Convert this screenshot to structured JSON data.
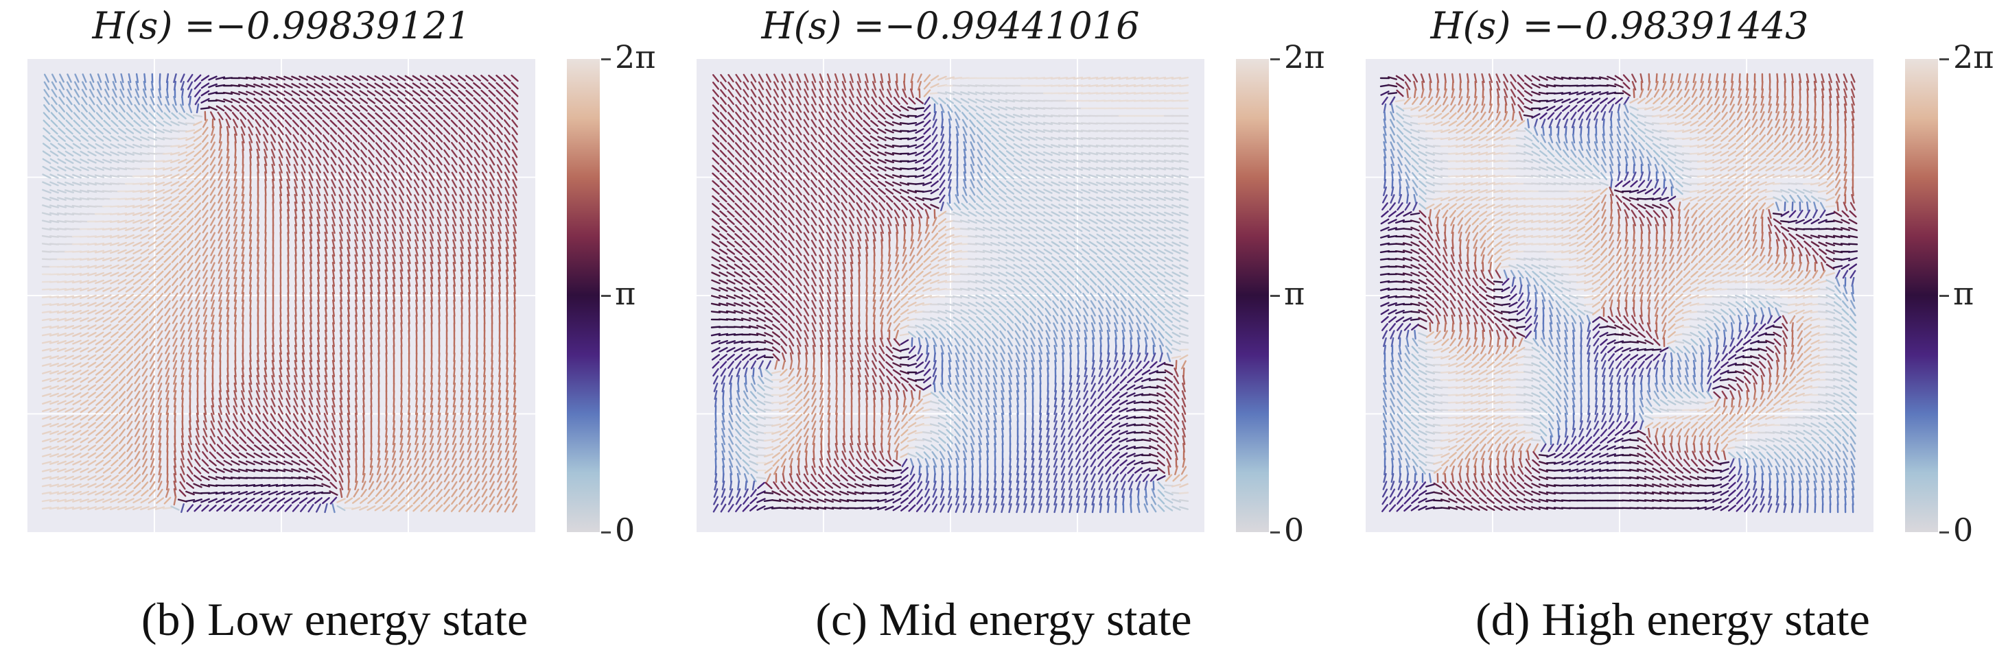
{
  "chart_data": [
    {
      "type": "heatmap",
      "title": "H(s) =−0.99839121",
      "caption": "(b) Low energy state",
      "colorbar": {
        "ticks": [
          "0",
          "π",
          "2π"
        ],
        "range": [
          0,
          6.283
        ]
      },
      "colormap": [
        "#dad8dc",
        "#a7c4d7",
        "#5d78bd",
        "#4a2580",
        "#2f0f3d",
        "#7e2d4a",
        "#b86c5c",
        "#e0b89d",
        "#e9e1dd"
      ],
      "grid": true,
      "hamiltonian": -0.99839121
    },
    {
      "type": "heatmap",
      "title": "H(s) =−0.99441016",
      "caption": "(c) Mid energy state",
      "colorbar": {
        "ticks": [
          "0",
          "π",
          "2π"
        ],
        "range": [
          0,
          6.283
        ]
      },
      "colormap": [
        "#dad8dc",
        "#a7c4d7",
        "#5d78bd",
        "#4a2580",
        "#2f0f3d",
        "#7e2d4a",
        "#b86c5c",
        "#e0b89d",
        "#e9e1dd"
      ],
      "grid": true,
      "hamiltonian": -0.99441016
    },
    {
      "type": "heatmap",
      "title": "H(s) =−0.98391443",
      "caption": "(d) High energy state",
      "colorbar": {
        "ticks": [
          "0",
          "π",
          "2π"
        ],
        "range": [
          0,
          6.283
        ]
      },
      "colormap": [
        "#dad8dc",
        "#a7c4d7",
        "#5d78bd",
        "#4a2580",
        "#2f0f3d",
        "#7e2d4a",
        "#b86c5c",
        "#e0b89d",
        "#e9e1dd"
      ],
      "grid": true,
      "hamiltonian": -0.98391443
    }
  ]
}
